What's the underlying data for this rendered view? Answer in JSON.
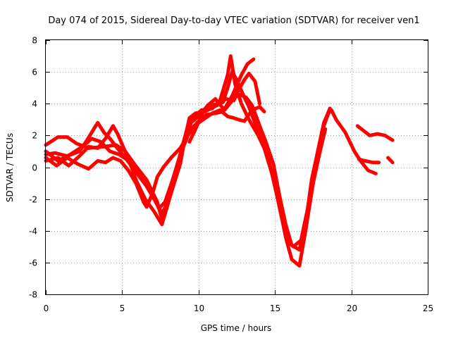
{
  "chart_data": {
    "type": "scatter",
    "title": "Day 074 of 2015, Sidereal Day-to-day VTEC variation (SDTVAR) for receiver ven1",
    "xlabel": "GPS time / hours",
    "ylabel": "SDTVAR / TECUs",
    "xlim": [
      0,
      25
    ],
    "ylim": [
      -8,
      8
    ],
    "xticks": [
      0,
      5,
      10,
      15,
      20,
      25
    ],
    "yticks": [
      -8,
      -6,
      -4,
      -2,
      0,
      2,
      4,
      6,
      8
    ],
    "grid": true,
    "marker_color": "#ff0000",
    "series": [
      {
        "name": "arc-1",
        "points": [
          [
            0.0,
            1.4
          ],
          [
            0.8,
            1.9
          ],
          [
            1.4,
            1.9
          ],
          [
            2.0,
            1.5
          ],
          [
            2.8,
            1.2
          ],
          [
            3.8,
            1.3
          ],
          [
            4.6,
            1.4
          ],
          [
            5.2,
            1.0
          ],
          [
            5.8,
            0.2
          ],
          [
            6.6,
            -0.8
          ],
          [
            7.3,
            -2.2
          ],
          [
            7.6,
            -3.3
          ],
          [
            7.9,
            -2.6
          ],
          [
            8.4,
            -1.0
          ],
          [
            8.8,
            0.2
          ],
          [
            9.1,
            1.8
          ],
          [
            9.4,
            3.1
          ],
          [
            9.8,
            3.4
          ],
          [
            10.4,
            3.5
          ],
          [
            11.0,
            3.8
          ],
          [
            11.6,
            4.1
          ],
          [
            11.9,
            5.0
          ],
          [
            12.2,
            6.0
          ],
          [
            12.5,
            5.5
          ],
          [
            12.9,
            4.6
          ],
          [
            13.3,
            3.8
          ],
          [
            13.8,
            2.5
          ],
          [
            14.2,
            1.5
          ],
          [
            14.6,
            0.4
          ],
          [
            15.0,
            -1.2
          ],
          [
            15.4,
            -3.0
          ],
          [
            15.8,
            -4.6
          ],
          [
            16.2,
            -5.0
          ],
          [
            16.7,
            -4.6
          ],
          [
            17.1,
            -2.8
          ],
          [
            17.6,
            -0.2
          ],
          [
            17.9,
            1.2
          ],
          [
            18.2,
            2.6
          ],
          [
            18.5,
            3.4
          ],
          [
            18.7,
            3.6
          ],
          [
            19.0,
            3.0
          ],
          [
            19.6,
            2.2
          ],
          [
            20.2,
            1.0
          ],
          [
            20.6,
            0.4
          ],
          [
            21.1,
            -0.2
          ],
          [
            21.6,
            -0.4
          ]
        ]
      },
      {
        "name": "arc-2",
        "points": [
          [
            0.0,
            0.8
          ],
          [
            0.6,
            0.9
          ],
          [
            1.4,
            0.7
          ],
          [
            2.2,
            1.0
          ],
          [
            2.7,
            1.7
          ],
          [
            3.2,
            2.5
          ],
          [
            3.4,
            2.8
          ],
          [
            3.8,
            2.2
          ],
          [
            4.2,
            1.8
          ],
          [
            4.6,
            1.3
          ],
          [
            5.2,
            0.6
          ],
          [
            5.9,
            -0.3
          ],
          [
            6.6,
            -1.2
          ],
          [
            7.2,
            -2.2
          ],
          [
            7.6,
            -2.9
          ],
          [
            8.0,
            -2.2
          ],
          [
            8.5,
            -0.3
          ],
          [
            8.9,
            1.2
          ],
          [
            9.3,
            2.6
          ],
          [
            9.7,
            3.2
          ],
          [
            10.2,
            3.6
          ],
          [
            10.9,
            3.7
          ],
          [
            11.4,
            4.2
          ],
          [
            11.9,
            5.8
          ],
          [
            12.1,
            7.0
          ],
          [
            12.4,
            5.2
          ],
          [
            12.8,
            4.0
          ],
          [
            13.3,
            3.0
          ],
          [
            13.9,
            2.0
          ],
          [
            14.3,
            1.2
          ],
          [
            14.8,
            -0.4
          ],
          [
            15.3,
            -2.5
          ],
          [
            15.7,
            -4.4
          ],
          [
            16.1,
            -5.8
          ],
          [
            16.6,
            -6.2
          ],
          [
            17.0,
            -4.0
          ],
          [
            17.5,
            -1.0
          ],
          [
            17.9,
            0.8
          ],
          [
            18.3,
            2.4
          ]
        ]
      },
      {
        "name": "arc-3",
        "points": [
          [
            0.0,
            0.4
          ],
          [
            0.8,
            0.6
          ],
          [
            1.5,
            0.1
          ],
          [
            2.2,
            0.7
          ],
          [
            2.8,
            1.3
          ],
          [
            3.4,
            1.2
          ],
          [
            3.9,
            1.8
          ],
          [
            4.4,
            2.6
          ],
          [
            4.7,
            2.1
          ],
          [
            5.1,
            1.2
          ],
          [
            5.5,
            0.3
          ],
          [
            5.9,
            -0.8
          ],
          [
            6.5,
            -2.0
          ],
          [
            7.1,
            -2.8
          ],
          [
            7.6,
            -3.6
          ],
          [
            8.0,
            -2.3
          ],
          [
            8.6,
            0.0
          ],
          [
            9.1,
            1.6
          ],
          [
            9.5,
            2.8
          ],
          [
            10.1,
            3.3
          ],
          [
            10.6,
            3.9
          ],
          [
            11.1,
            4.3
          ],
          [
            11.7,
            3.6
          ],
          [
            12.2,
            4.2
          ],
          [
            12.6,
            4.6
          ],
          [
            13.1,
            4.4
          ],
          [
            13.5,
            3.9
          ],
          [
            14.0,
            2.6
          ],
          [
            14.4,
            1.6
          ],
          [
            14.9,
            0.2
          ],
          [
            15.3,
            -1.8
          ],
          [
            15.7,
            -3.6
          ],
          [
            16.1,
            -4.9
          ],
          [
            16.6,
            -5.2
          ],
          [
            17.0,
            -3.6
          ],
          [
            17.4,
            -0.8
          ],
          [
            17.8,
            1.0
          ],
          [
            18.2,
            2.8
          ],
          [
            18.6,
            3.7
          ]
        ]
      },
      {
        "name": "arc-4",
        "points": [
          [
            0.0,
            0.6
          ],
          [
            0.7,
            0.1
          ],
          [
            1.4,
            0.6
          ],
          [
            2.1,
            0.2
          ],
          [
            2.8,
            -0.1
          ],
          [
            3.4,
            0.4
          ],
          [
            3.9,
            0.3
          ],
          [
            4.4,
            0.6
          ],
          [
            4.9,
            0.4
          ],
          [
            5.4,
            -0.2
          ],
          [
            5.9,
            -1.0
          ],
          [
            6.4,
            -2.2
          ],
          [
            6.6,
            -2.5
          ],
          [
            7.0,
            -1.6
          ],
          [
            7.3,
            -0.6
          ],
          [
            7.7,
            0.0
          ],
          [
            8.2,
            0.6
          ],
          [
            8.8,
            1.2
          ],
          [
            9.3,
            2.0
          ],
          [
            9.7,
            2.6
          ],
          [
            10.3,
            3.0
          ],
          [
            10.9,
            3.4
          ],
          [
            11.4,
            3.6
          ],
          [
            11.9,
            3.2
          ],
          [
            12.3,
            3.1
          ],
          [
            12.6,
            3.0
          ],
          [
            13.0,
            2.9
          ],
          [
            13.5,
            3.6
          ],
          [
            14.0,
            3.8
          ],
          [
            14.3,
            3.5
          ]
        ]
      },
      {
        "name": "arc-5",
        "points": [
          [
            0.0,
            1.0
          ],
          [
            0.8,
            0.4
          ],
          [
            1.6,
            0.8
          ],
          [
            2.4,
            1.3
          ],
          [
            3.0,
            1.8
          ],
          [
            3.6,
            1.6
          ],
          [
            4.2,
            1.0
          ],
          [
            4.8,
            0.8
          ],
          [
            5.3,
            0.5
          ],
          [
            5.8,
            0.0
          ],
          [
            6.4,
            -0.6
          ],
          [
            6.9,
            -1.4
          ],
          [
            7.4,
            -2.6
          ],
          [
            7.8,
            -2.2
          ],
          [
            8.3,
            -0.8
          ],
          [
            8.8,
            0.8
          ],
          [
            9.3,
            2.0
          ],
          [
            9.9,
            2.8
          ],
          [
            10.5,
            3.3
          ],
          [
            11.1,
            3.4
          ],
          [
            11.6,
            3.5
          ],
          [
            12.2,
            4.5
          ],
          [
            12.8,
            5.8
          ],
          [
            13.2,
            6.5
          ],
          [
            13.6,
            6.8
          ]
        ]
      },
      {
        "name": "arc-6",
        "points": [
          [
            9.4,
            1.6
          ],
          [
            9.8,
            2.4
          ],
          [
            10.3,
            3.5
          ],
          [
            10.8,
            3.9
          ],
          [
            11.3,
            4.0
          ],
          [
            11.8,
            4.3
          ],
          [
            12.3,
            4.2
          ],
          [
            12.7,
            5.0
          ],
          [
            13.0,
            5.5
          ],
          [
            13.3,
            5.9
          ],
          [
            13.7,
            5.4
          ],
          [
            14.0,
            4.0
          ]
        ]
      },
      {
        "name": "arc-7",
        "points": [
          [
            20.4,
            2.6
          ],
          [
            20.8,
            2.3
          ],
          [
            21.2,
            2.0
          ],
          [
            21.7,
            2.1
          ],
          [
            22.2,
            2.0
          ],
          [
            22.7,
            1.7
          ]
        ]
      },
      {
        "name": "arc-8",
        "points": [
          [
            20.5,
            0.5
          ],
          [
            20.9,
            0.4
          ],
          [
            21.4,
            0.3
          ],
          [
            21.8,
            0.3
          ]
        ]
      },
      {
        "name": "arc-9",
        "points": [
          [
            22.4,
            0.6
          ],
          [
            22.7,
            0.3
          ]
        ]
      }
    ]
  }
}
